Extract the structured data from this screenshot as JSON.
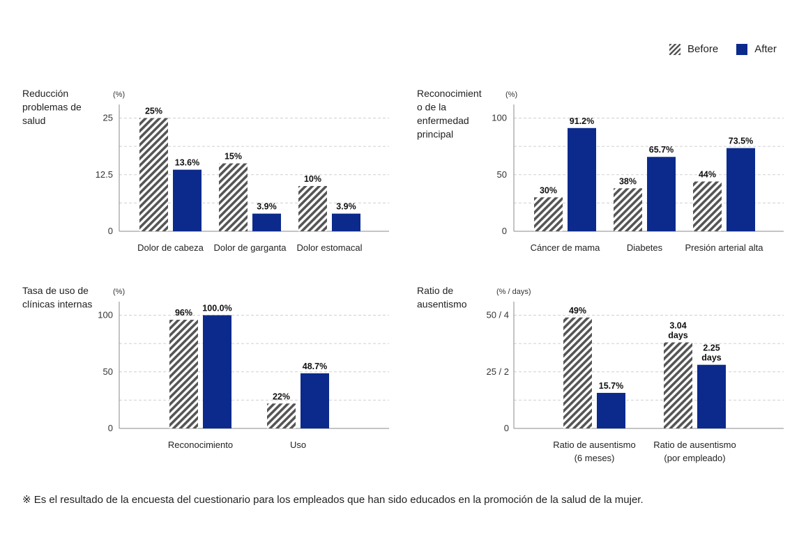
{
  "legend": {
    "before": "Before",
    "after": "After"
  },
  "colors": {
    "before": "#555555",
    "after": "#0b2a8c"
  },
  "footnote": "※ Es el resultado de la encuesta del cuestionario para los empleados que han sido educados en la promoción de la salud de la mujer.",
  "chart_data": [
    {
      "type": "bar",
      "title": "Reducción problemas de salud",
      "title_lines": [
        "Reducción",
        "problemas de",
        "salud"
      ],
      "unit": "(%)",
      "yticks": [
        "0",
        "12.5",
        "25"
      ],
      "ytick_values": [
        0,
        12.5,
        25
      ],
      "ylim": [
        0,
        28
      ],
      "grid": "dashed",
      "legend": "top-right",
      "categories": [
        "Dolor de cabeza",
        "Dolor de garganta",
        "Dolor estomacal"
      ],
      "category_lines": [
        [
          "Dolor de cabeza"
        ],
        [
          "Dolor de garganta"
        ],
        [
          "Dolor estomacal"
        ]
      ],
      "series": [
        {
          "name": "Before",
          "values": [
            25,
            15,
            10
          ],
          "labels": [
            [
              "25%"
            ],
            [
              "15%"
            ],
            [
              "10%"
            ]
          ]
        },
        {
          "name": "After",
          "values": [
            13.6,
            3.9,
            3.9
          ],
          "labels": [
            [
              "13.6%"
            ],
            [
              "3.9%"
            ],
            [
              "3.9%"
            ]
          ]
        }
      ]
    },
    {
      "type": "bar",
      "title": "Reconocimiento de la enfermedad principal",
      "title_lines": [
        "Reconocimient",
        "o de la",
        "enfermedad",
        "principal"
      ],
      "unit": "(%)",
      "yticks": [
        "0",
        "50",
        "100"
      ],
      "ytick_values": [
        0,
        50,
        100
      ],
      "ylim": [
        0,
        112
      ],
      "grid": "dashed",
      "categories": [
        "Cáncer de mama",
        "Diabetes",
        "Presión arterial alta"
      ],
      "category_lines": [
        [
          "Cáncer de mama"
        ],
        [
          "Diabetes"
        ],
        [
          "Presión arterial alta"
        ]
      ],
      "series": [
        {
          "name": "Before",
          "values": [
            30,
            38,
            44
          ],
          "labels": [
            [
              "30%"
            ],
            [
              "38%"
            ],
            [
              "44%"
            ]
          ]
        },
        {
          "name": "After",
          "values": [
            91.2,
            65.7,
            73.5
          ],
          "labels": [
            [
              "91.2%"
            ],
            [
              "65.7%"
            ],
            [
              "73.5%"
            ]
          ]
        }
      ]
    },
    {
      "type": "bar",
      "title": "Tasa de uso de clínicas internas",
      "title_lines": [
        "Tasa de uso de",
        "clínicas internas"
      ],
      "unit": "(%)",
      "yticks": [
        "0",
        "50",
        "100"
      ],
      "ytick_values": [
        0,
        50,
        100
      ],
      "ylim": [
        0,
        112
      ],
      "grid": "dashed",
      "categories": [
        "Reconocimiento",
        "Uso"
      ],
      "category_lines": [
        [
          "Reconocimiento"
        ],
        [
          "Uso"
        ]
      ],
      "series": [
        {
          "name": "Before",
          "values": [
            96,
            22
          ],
          "labels": [
            [
              "96%"
            ],
            [
              "22%"
            ]
          ]
        },
        {
          "name": "After",
          "values": [
            100.0,
            48.7
          ],
          "labels": [
            [
              "100.0%"
            ],
            [
              "48.7%"
            ]
          ]
        }
      ]
    },
    {
      "type": "bar",
      "title": "Ratio de ausentismo",
      "title_lines": [
        "Ratio de",
        "ausentismo"
      ],
      "unit": "(% / days)",
      "yticks": [
        "0",
        "25 / 2",
        "50 / 4"
      ],
      "ytick_values": [
        0,
        25,
        50
      ],
      "ylim": [
        0,
        56
      ],
      "grid": "dashed",
      "categories": [
        "Ratio de ausentismo (6 meses)",
        "Ratio de ausentismo (por empleado)"
      ],
      "category_lines": [
        [
          "Ratio de ausentismo",
          "(6 meses)"
        ],
        [
          "Ratio de ausentismo",
          "(por empleado)"
        ]
      ],
      "series": [
        {
          "name": "Before",
          "values": [
            49,
            38
          ],
          "labels": [
            [
              "49%"
            ],
            [
              "3.04",
              "days"
            ]
          ]
        },
        {
          "name": "After",
          "values": [
            15.7,
            28.1
          ],
          "labels": [
            [
              "15.7%"
            ],
            [
              "2.25",
              "days"
            ]
          ]
        }
      ]
    }
  ]
}
